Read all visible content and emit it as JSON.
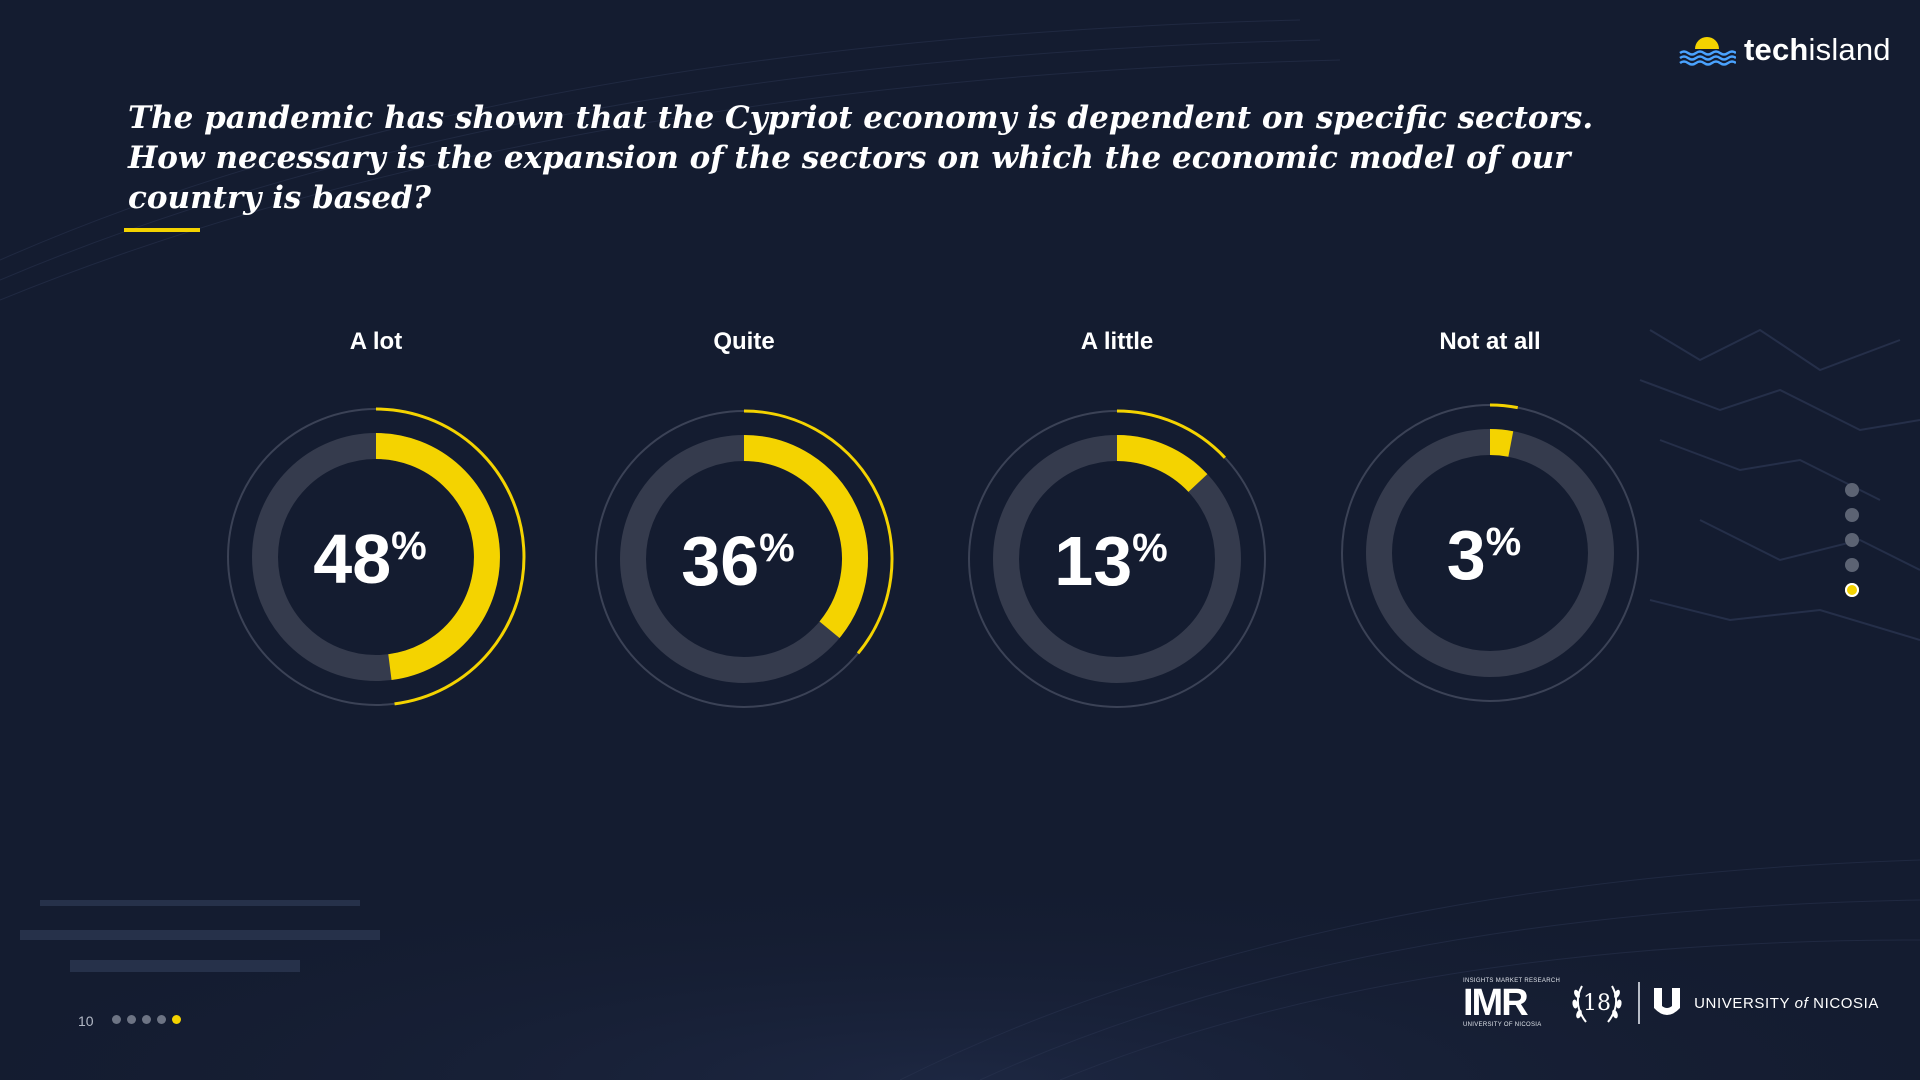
{
  "brand": {
    "logo_bold": "tech",
    "logo_light": "island",
    "accent": "#f4d300",
    "background": "#141c30",
    "track": "#353b4d"
  },
  "question": "The pandemic has shown that the Cypriot economy is dependent on specific sectors. How necessary is the expansion of the sectors on which the economic model of our country is based?",
  "chart_data": {
    "type": "pie",
    "title": "The pandemic has shown that the Cypriot economy is dependent on specific sectors. How necessary is the expansion of the sectors on which the economic model of our country is based?",
    "unit": "%",
    "categories": [
      "A lot",
      "Quite",
      "A little",
      "Not at all"
    ],
    "values": [
      48,
      36,
      13,
      3
    ],
    "value_labels": [
      "48",
      "36",
      "13",
      "3"
    ],
    "ylim": [
      0,
      100
    ]
  },
  "footer": {
    "page_number": "10",
    "page_dots": 5,
    "active_dot": 4,
    "side_dots": 5,
    "active_side_dot": 4,
    "imr_tagline": "INSIGHTS MARKET RESEARCH",
    "imr_name": "IMR",
    "imr_sub": "UNIVERSITY OF NICOSIA",
    "anniversary": "18",
    "university_pre": "UNIVERSITY",
    "university_of": "of",
    "university_post": "NICOSIA"
  }
}
